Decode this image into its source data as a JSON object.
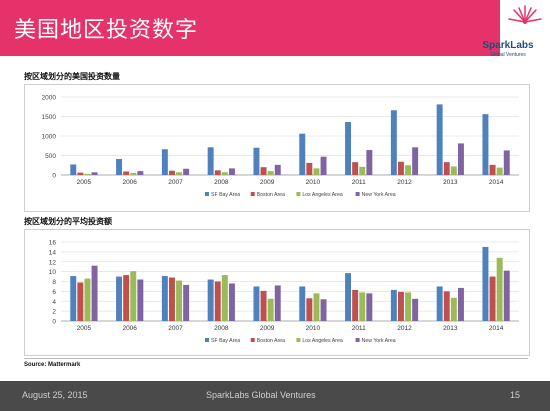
{
  "slide": {
    "title": "美国地区投资数字",
    "logo_name": "SparkLabs",
    "logo_sub": "Global Ventures",
    "source": "Source: Mattermark",
    "footer_date": "August 25, 2015",
    "footer_company": "SparkLabs Global Ventures",
    "page_number": "15"
  },
  "colors": {
    "title_bar": "#e5326a",
    "sf": "#4f81bd",
    "boston": "#c0504d",
    "la": "#9bbb59",
    "ny": "#8064a2"
  },
  "chart_data": [
    {
      "type": "bar",
      "title": "按区域划分的美国投资数量",
      "categories": [
        "2005",
        "2006",
        "2007",
        "2008",
        "2009",
        "2010",
        "2011",
        "2012",
        "2013",
        "2014"
      ],
      "ylim": [
        0,
        2000
      ],
      "yticks": [
        0,
        500,
        1000,
        1500,
        2000
      ],
      "grid": true,
      "legend": "bottom",
      "series": [
        {
          "name": "SF Bay Area",
          "values": [
            270,
            410,
            660,
            710,
            700,
            1060,
            1360,
            1660,
            1810,
            1560
          ]
        },
        {
          "name": "Boston Area",
          "values": [
            60,
            90,
            110,
            120,
            200,
            310,
            330,
            340,
            330,
            260
          ]
        },
        {
          "name": "Los Angeles Area",
          "values": [
            30,
            50,
            70,
            70,
            100,
            170,
            210,
            250,
            220,
            190
          ]
        },
        {
          "name": "New York Area",
          "values": [
            70,
            100,
            160,
            170,
            260,
            470,
            640,
            710,
            810,
            630
          ]
        }
      ]
    },
    {
      "type": "bar",
      "title": "按区域划分的平均投资额",
      "categories": [
        "2005",
        "2006",
        "2007",
        "2008",
        "2009",
        "2010",
        "2011",
        "2012",
        "2013",
        "2014"
      ],
      "ylim": [
        0,
        16
      ],
      "yticks": [
        0,
        2,
        4,
        6,
        8,
        10,
        12,
        14,
        16
      ],
      "grid": true,
      "legend": "bottom",
      "series": [
        {
          "name": "SF Bay Area",
          "values": [
            9.1,
            9.0,
            9.1,
            8.4,
            7.0,
            7.0,
            9.7,
            6.3,
            7.0,
            15.0
          ]
        },
        {
          "name": "Boston Area",
          "values": [
            7.8,
            9.3,
            8.8,
            8.0,
            6.1,
            4.6,
            6.3,
            5.9,
            6.0,
            9.0
          ]
        },
        {
          "name": "Los Angeles Area",
          "values": [
            8.6,
            10.1,
            8.2,
            9.3,
            4.5,
            5.6,
            5.8,
            5.8,
            4.7,
            12.8
          ]
        },
        {
          "name": "New York Area",
          "values": [
            11.2,
            8.4,
            7.3,
            7.6,
            7.2,
            4.4,
            5.6,
            4.5,
            6.7,
            10.2
          ]
        }
      ]
    }
  ]
}
